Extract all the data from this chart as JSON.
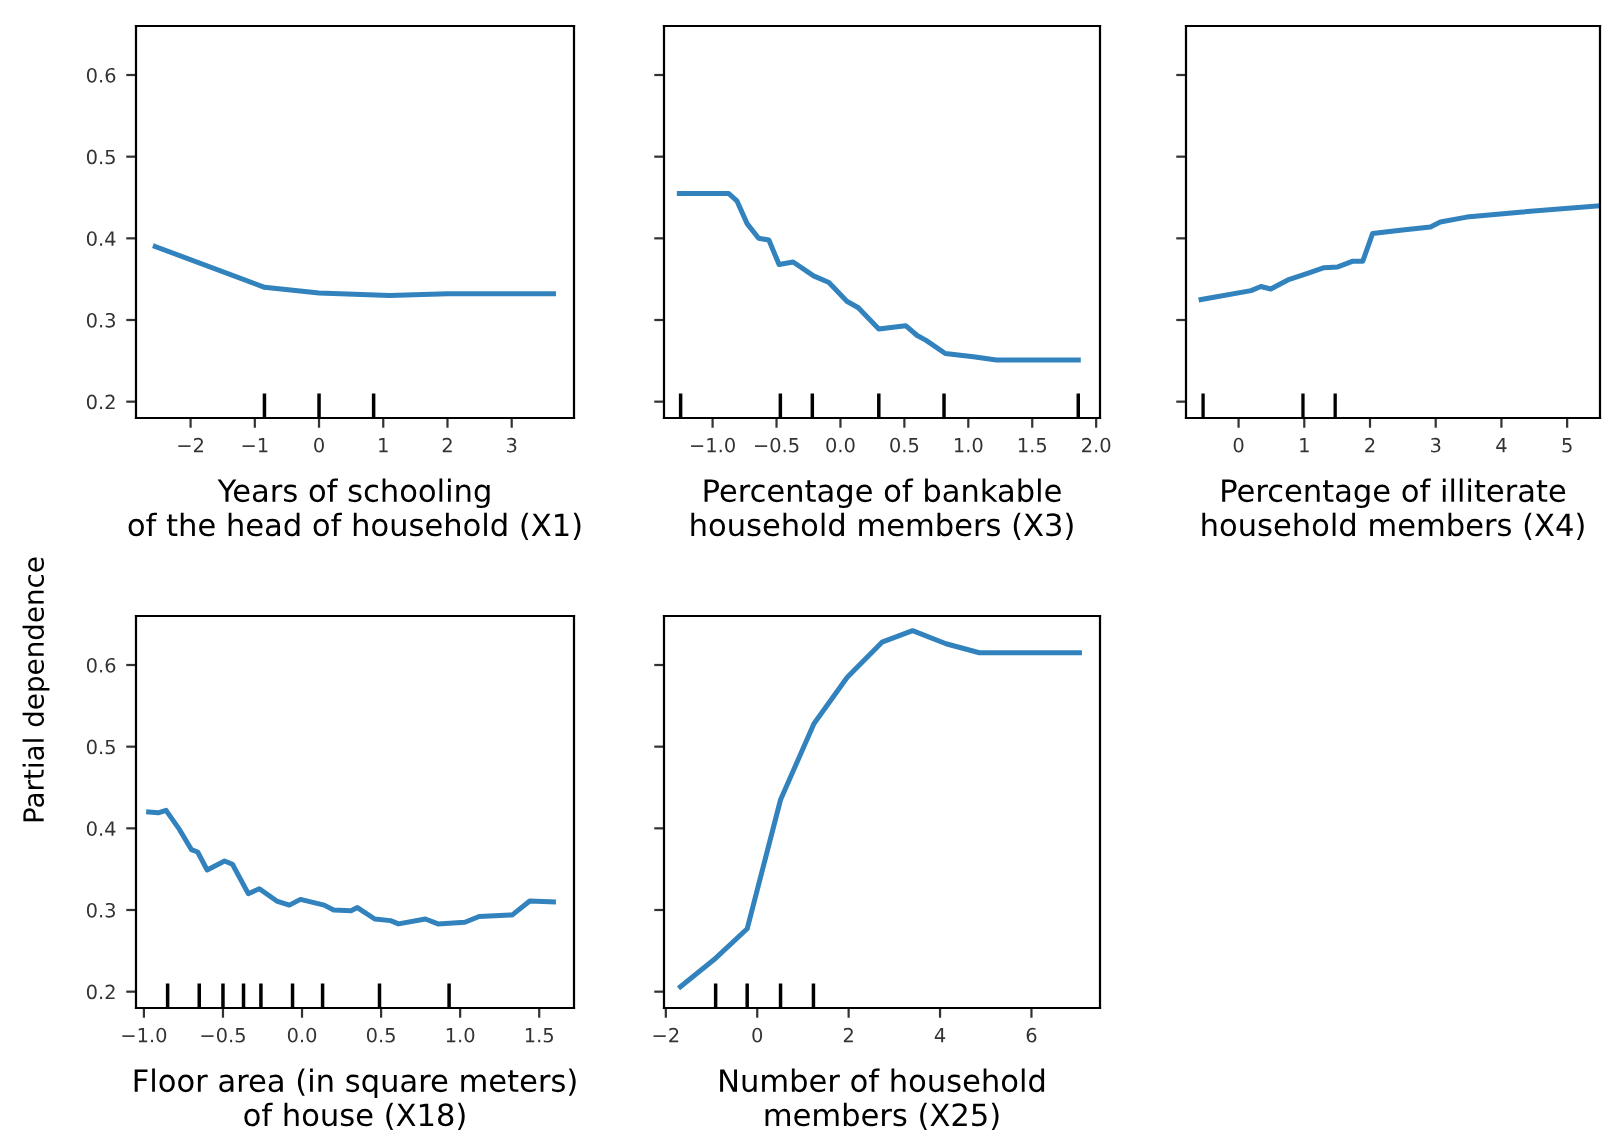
{
  "chart_data": [
    {
      "type": "line",
      "xlabel": "Years of schooling\nof the head of household (X1)",
      "ylabel": "Partial dependence",
      "x": [
        -2.55,
        -0.85,
        0,
        1.1,
        2,
        3.65
      ],
      "series": [
        {
          "color": "#3182bd",
          "values": [
            0.39,
            0.34,
            0.333,
            0.33,
            0.332,
            0.332
          ]
        },
        {
          "type": "bar",
          "color": "#000000",
          "x": [
            -0.85,
            0,
            0.85
          ],
          "base": [
            0.18,
            0.18,
            0.18
          ],
          "values": [
            0.03,
            0.03,
            0.03
          ]
        }
      ],
      "xlim": [
        -2.85,
        3.97
      ],
      "xticks": [
        {
          "value": -2,
          "label": "−2"
        },
        {
          "value": -1,
          "label": "−1"
        },
        0,
        1,
        2,
        3
      ],
      "ylim": [
        0.18,
        0.66
      ],
      "yticks": [
        0.2,
        0.3,
        0.4,
        0.5,
        0.6
      ],
      "grid": false,
      "legend": false
    },
    {
      "type": "line",
      "xlabel": "Percentage of bankable\nhousehold members (X3)",
      "x": [
        -1.26,
        -0.875,
        -0.81,
        -0.73,
        -0.64,
        -0.56,
        -0.48,
        -0.37,
        -0.21,
        -0.09,
        0.05,
        0.14,
        0.3,
        0.51,
        0.6,
        0.67,
        0.82,
        1.04,
        1.22,
        1.86
      ],
      "series": [
        {
          "color": "#3182bd",
          "values": [
            0.455,
            0.455,
            0.446,
            0.418,
            0.4,
            0.398,
            0.368,
            0.371,
            0.354,
            0.346,
            0.323,
            0.315,
            0.289,
            0.293,
            0.281,
            0.275,
            0.259,
            0.255,
            0.251,
            0.251
          ]
        },
        {
          "type": "bar",
          "color": "#000000",
          "x": [
            -1.25,
            -0.47,
            -0.22,
            0.3,
            0.81,
            1.86
          ],
          "base": [
            0.18,
            0.18,
            0.18,
            0.18,
            0.18,
            0.18
          ],
          "values": [
            0.03,
            0.03,
            0.03,
            0.03,
            0.03,
            0.03
          ]
        }
      ],
      "xlim": [
        -1.38,
        2.03
      ],
      "xticks": [
        {
          "value": -1.0,
          "label": "−1.0"
        },
        {
          "value": -0.5,
          "label": "−0.5"
        },
        {
          "value": 0,
          "label": "0.0"
        },
        0.5,
        {
          "value": 1,
          "label": "1.0"
        },
        1.5,
        {
          "value": 2,
          "label": "2.0"
        }
      ],
      "ylim": [
        0.18,
        0.66
      ],
      "yticks": [
        {
          "value": 0.2,
          "label": null
        },
        {
          "value": 0.3,
          "label": null
        },
        {
          "value": 0.4,
          "label": null
        },
        {
          "value": 0.5,
          "label": null
        },
        {
          "value": 0.6,
          "label": null
        }
      ],
      "tick_labels": "x",
      "grid": false,
      "legend": false
    },
    {
      "type": "line",
      "xlabel": "Percentage of illiterate\nhousehold members (X4)",
      "x": [
        -0.57,
        0.19,
        0.34,
        0.49,
        0.75,
        1.05,
        1.3,
        1.51,
        1.74,
        1.89,
        2.04,
        2.46,
        2.92,
        3.07,
        3.47,
        4.28,
        5.5
      ],
      "series": [
        {
          "color": "#3182bd",
          "values": [
            0.325,
            0.336,
            0.341,
            0.338,
            0.349,
            0.357,
            0.364,
            0.365,
            0.372,
            0.372,
            0.406,
            0.41,
            0.414,
            0.42,
            0.426,
            0.432,
            0.44
          ]
        },
        {
          "type": "bar",
          "color": "#000000",
          "x": [
            -0.54,
            0.98,
            1.47
          ],
          "base": [
            0.18,
            0.18,
            0.18
          ],
          "values": [
            0.03,
            0.03,
            0.03
          ]
        }
      ],
      "xlim": [
        -0.8,
        5.5
      ],
      "xticks": [
        0,
        1,
        2,
        3,
        4,
        5
      ],
      "ylim": [
        0.18,
        0.66
      ],
      "yticks": [
        {
          "value": 0.2,
          "label": null
        },
        {
          "value": 0.3,
          "label": null
        },
        {
          "value": 0.4,
          "label": null
        },
        {
          "value": 0.5,
          "label": null
        },
        {
          "value": 0.6,
          "label": null
        }
      ],
      "tick_labels": "x",
      "grid": false,
      "legend": false
    },
    {
      "type": "line",
      "xlabel": "Floor area (in square meters)\nof house (X18)",
      "x": [
        -0.97,
        -0.91,
        -0.86,
        -0.78,
        -0.7,
        -0.66,
        -0.6,
        -0.49,
        -0.44,
        -0.34,
        -0.27,
        -0.16,
        -0.08,
        -0.01,
        0.14,
        0.2,
        0.31,
        0.35,
        0.46,
        0.56,
        0.61,
        0.78,
        0.86,
        1.03,
        1.12,
        1.33,
        1.44,
        1.59
      ],
      "series": [
        {
          "color": "#3182bd",
          "values": [
            0.42,
            0.419,
            0.422,
            0.4,
            0.374,
            0.371,
            0.349,
            0.36,
            0.356,
            0.32,
            0.326,
            0.311,
            0.306,
            0.313,
            0.306,
            0.3,
            0.299,
            0.303,
            0.289,
            0.287,
            0.283,
            0.289,
            0.283,
            0.285,
            0.292,
            0.294,
            0.311,
            0.31
          ]
        },
        {
          "type": "bar",
          "color": "#000000",
          "x": [
            -0.85,
            -0.65,
            -0.5,
            -0.37,
            -0.26,
            -0.06,
            0.13,
            0.49,
            0.93
          ],
          "base": [
            0.18,
            0.18,
            0.18,
            0.18,
            0.18,
            0.18,
            0.18,
            0.18,
            0.18
          ],
          "values": [
            0.03,
            0.03,
            0.03,
            0.03,
            0.03,
            0.03,
            0.03,
            0.03,
            0.03
          ]
        }
      ],
      "xlim": [
        -1.05,
        1.72
      ],
      "xticks": [
        {
          "value": -1.0,
          "label": "−1.0"
        },
        {
          "value": -0.5,
          "label": "−0.5"
        },
        {
          "value": 0,
          "label": "0.0"
        },
        0.5,
        {
          "value": 1,
          "label": "1.0"
        },
        1.5
      ],
      "ylim": [
        0.18,
        0.66
      ],
      "yticks": [
        0.2,
        0.3,
        0.4,
        0.5,
        0.6
      ],
      "grid": false,
      "legend": false
    },
    {
      "type": "line",
      "xlabel": "Number of household\nmembers (X25)",
      "x": [
        -1.68,
        -0.95,
        -0.22,
        0.51,
        1.24,
        1.97,
        2.73,
        3.4,
        4.13,
        4.86,
        7.05
      ],
      "series": [
        {
          "color": "#3182bd",
          "values": [
            0.206,
            0.239,
            0.277,
            0.435,
            0.528,
            0.585,
            0.628,
            0.642,
            0.626,
            0.615,
            0.615
          ]
        },
        {
          "type": "bar",
          "color": "#000000",
          "x": [
            -0.91,
            -0.22,
            0.51,
            1.23
          ],
          "base": [
            0.18,
            0.18,
            0.18,
            0.18
          ],
          "values": [
            0.03,
            0.03,
            0.03,
            0.03
          ]
        }
      ],
      "xlim": [
        -2.04,
        7.5
      ],
      "xticks": [
        {
          "value": -2,
          "label": "−2"
        },
        0,
        2,
        4,
        6
      ],
      "ylim": [
        0.18,
        0.66
      ],
      "yticks": [
        {
          "value": 0.2,
          "label": null
        },
        {
          "value": 0.3,
          "label": null
        },
        {
          "value": 0.4,
          "label": null
        },
        {
          "value": 0.5,
          "label": null
        },
        {
          "value": 0.6,
          "label": null
        }
      ],
      "tick_labels": "x",
      "grid": false,
      "legend": false
    }
  ]
}
